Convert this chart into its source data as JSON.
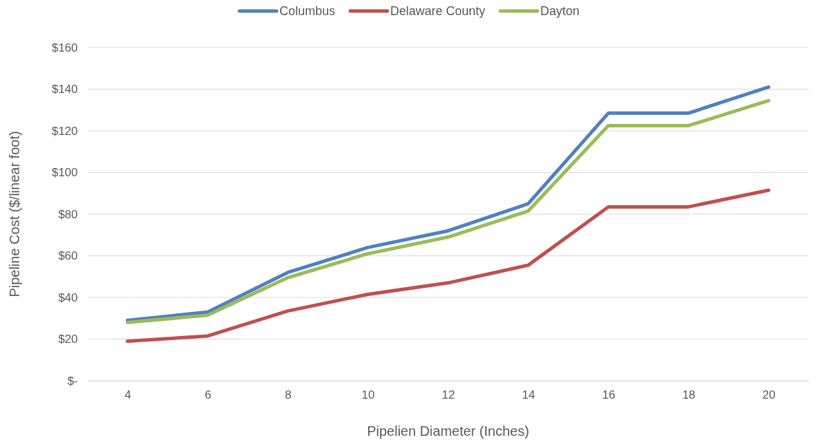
{
  "chart_data": {
    "type": "line",
    "xlabel": "Pipelien Diameter (Inches)",
    "ylabel": "Pipeline Cost ($/linear foot)",
    "categories": [
      "4",
      "6",
      "8",
      "10",
      "12",
      "14",
      "16",
      "18",
      "20"
    ],
    "series": [
      {
        "name": "Columbus",
        "color": "#4f81bd",
        "values": [
          29,
          33,
          52,
          64,
          72,
          85,
          128.5,
          128.5,
          141
        ]
      },
      {
        "name": "Delaware County",
        "color": "#c0504d",
        "values": [
          19,
          21.5,
          33.5,
          41.5,
          47,
          55.5,
          83.5,
          83.5,
          91.5
        ]
      },
      {
        "name": "Dayton",
        "color": "#9bbb59",
        "values": [
          28,
          31.5,
          49.5,
          61,
          69,
          81.5,
          122.5,
          122.5,
          134.5
        ]
      }
    ],
    "ylim": [
      0,
      160
    ],
    "yticks": [
      {
        "value": 0,
        "label": "$-"
      },
      {
        "value": 20,
        "label": "$20"
      },
      {
        "value": 40,
        "label": "$40"
      },
      {
        "value": 60,
        "label": "$60"
      },
      {
        "value": 80,
        "label": "$80"
      },
      {
        "value": 100,
        "label": "$100"
      },
      {
        "value": 120,
        "label": "$120"
      },
      {
        "value": 140,
        "label": "$140"
      },
      {
        "value": 160,
        "label": "$160"
      }
    ],
    "grid": "y",
    "legend": "top",
    "marker": "none",
    "line_style": "solid"
  }
}
